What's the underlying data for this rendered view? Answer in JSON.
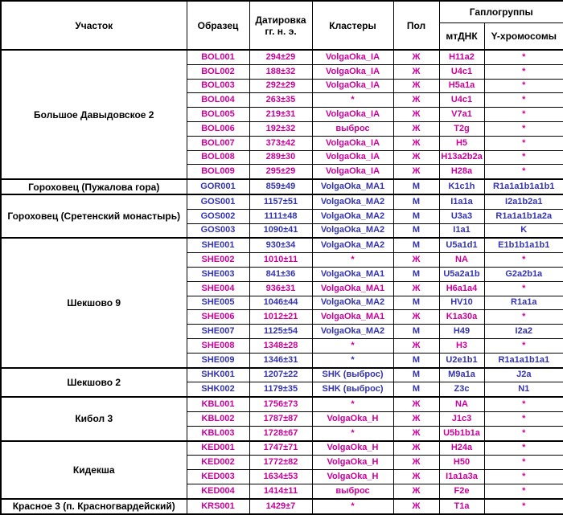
{
  "header": {
    "site": "Участок",
    "sample": "Образец",
    "dating_line1": "Датировка",
    "dating_line2": "гг. н. э.",
    "clusters": "Кластеры",
    "sex": "Пол",
    "haplogroups": "Гаплогруппы",
    "mtdna": "мтДНК",
    "ychr": "Y-хромосомы"
  },
  "colors": {
    "female_text": "#CC0099",
    "male_text": "#3333B2",
    "border": "#000000",
    "background": "#FFFFFF"
  },
  "sex_symbols": {
    "male": "М",
    "female": "Ж"
  },
  "groups": [
    {
      "site": "Большое Давыдовское 2",
      "rows": [
        {
          "sample": "BOL001",
          "dating": "294±29",
          "cluster": "VolgaOka_IA",
          "sex": "Ж",
          "mtdna": "H11a2",
          "y": "*"
        },
        {
          "sample": "BOL002",
          "dating": "188±32",
          "cluster": "VolgaOka_IA",
          "sex": "Ж",
          "mtdna": "U4c1",
          "y": "*"
        },
        {
          "sample": "BOL003",
          "dating": "292±29",
          "cluster": "VolgaOka_IA",
          "sex": "Ж",
          "mtdna": "H5a1a",
          "y": "*"
        },
        {
          "sample": "BOL004",
          "dating": "263±35",
          "cluster": "*",
          "sex": "Ж",
          "mtdna": "U4c1",
          "y": "*"
        },
        {
          "sample": "BOL005",
          "dating": "219±31",
          "cluster": "VolgaOka_IA",
          "sex": "Ж",
          "mtdna": "V7a1",
          "y": "*"
        },
        {
          "sample": "BOL006",
          "dating": "192±32",
          "cluster": "выброс",
          "sex": "Ж",
          "mtdna": "T2g",
          "y": "*"
        },
        {
          "sample": "BOL007",
          "dating": "373±42",
          "cluster": "VolgaOka_IA",
          "sex": "Ж",
          "mtdna": "H5",
          "y": "*"
        },
        {
          "sample": "BOL008",
          "dating": "289±30",
          "cluster": "VolgaOka_IA",
          "sex": "Ж",
          "mtdna": "H13a2b2a",
          "y": "*"
        },
        {
          "sample": "BOL009",
          "dating": "295±29",
          "cluster": "VolgaOka_IA",
          "sex": "Ж",
          "mtdna": "H28a",
          "y": "*"
        }
      ]
    },
    {
      "site": "Гороховец (Пужалова гора)",
      "rows": [
        {
          "sample": "GOR001",
          "dating": "859±49",
          "cluster": "VolgaOka_MA1",
          "sex": "М",
          "mtdna": "K1c1h",
          "y": "R1a1a1b1a1b1"
        }
      ]
    },
    {
      "site": "Гороховец (Сретенский монастырь)",
      "rows": [
        {
          "sample": "GOS001",
          "dating": "1157±51",
          "cluster": "VolgaOka_MA2",
          "sex": "М",
          "mtdna": "I1a1a",
          "y": "I2a1b2a1"
        },
        {
          "sample": "GOS002",
          "dating": "1111±48",
          "cluster": "VolgaOka_MA2",
          "sex": "М",
          "mtdna": "U3a3",
          "y": "R1a1a1b1a2a"
        },
        {
          "sample": "GOS003",
          "dating": "1090±41",
          "cluster": "VolgaOka_MA2",
          "sex": "М",
          "mtdna": "I1a1",
          "y": "K"
        }
      ]
    },
    {
      "site": "Шекшово 9",
      "rows": [
        {
          "sample": "SHE001",
          "dating": "930±34",
          "cluster": "VolgaOka_MA2",
          "sex": "М",
          "mtdna": "U5a1d1",
          "y": "E1b1b1a1b1"
        },
        {
          "sample": "SHE002",
          "dating": "1010±11",
          "cluster": "*",
          "sex": "Ж",
          "mtdna": "NA",
          "y": "*"
        },
        {
          "sample": "SHE003",
          "dating": "841±36",
          "cluster": "VolgaOka_MA1",
          "sex": "М",
          "mtdna": "U5a2a1b",
          "y": "G2a2b1a"
        },
        {
          "sample": "SHE004",
          "dating": "936±31",
          "cluster": "VolgaOka_MA1",
          "sex": "Ж",
          "mtdna": "H6a1a4",
          "y": "*"
        },
        {
          "sample": "SHE005",
          "dating": "1046±44",
          "cluster": "VolgaOka_MA2",
          "sex": "М",
          "mtdna": "HV10",
          "y": "R1a1a"
        },
        {
          "sample": "SHE006",
          "dating": "1012±21",
          "cluster": "VolgaOka_MA1",
          "sex": "Ж",
          "mtdna": "K1a30a",
          "y": "*"
        },
        {
          "sample": "SHE007",
          "dating": "1125±54",
          "cluster": "VolgaOka_MA2",
          "sex": "М",
          "mtdna": "H49",
          "y": "I2a2"
        },
        {
          "sample": "SHE008",
          "dating": "1348±28",
          "cluster": "*",
          "sex": "Ж",
          "mtdna": "H3",
          "y": "*"
        },
        {
          "sample": "SHE009",
          "dating": "1346±31",
          "cluster": "*",
          "sex": "М",
          "mtdna": "U2e1b1",
          "y": "R1a1a1b1a1"
        }
      ]
    },
    {
      "site": "Шекшово 2",
      "rows": [
        {
          "sample": "SHK001",
          "dating": "1207±22",
          "cluster": "SHK (выброс)",
          "sex": "М",
          "mtdna": "M9a1a",
          "y": "J2a"
        },
        {
          "sample": "SHK002",
          "dating": "1179±35",
          "cluster": "SHK (выброс)",
          "sex": "М",
          "mtdna": "Z3c",
          "y": "N1"
        }
      ]
    },
    {
      "site": "Кибол 3",
      "rows": [
        {
          "sample": "KBL001",
          "dating": "1756±73",
          "cluster": "*",
          "sex": "Ж",
          "mtdna": "NA",
          "y": "*"
        },
        {
          "sample": "KBL002",
          "dating": "1787±87",
          "cluster": "VolgaOka_H",
          "sex": "Ж",
          "mtdna": "J1c3",
          "y": "*"
        },
        {
          "sample": "KBL003",
          "dating": "1728±67",
          "cluster": "*",
          "sex": "Ж",
          "mtdna": "U5b1b1a",
          "y": "*"
        }
      ]
    },
    {
      "site": "Кидекша",
      "rows": [
        {
          "sample": "KED001",
          "dating": "1747±71",
          "cluster": "VolgaOka_H",
          "sex": "Ж",
          "mtdna": "H24a",
          "y": "*"
        },
        {
          "sample": "KED002",
          "dating": "1772±82",
          "cluster": "VolgaOka_H",
          "sex": "Ж",
          "mtdna": "H50",
          "y": "*"
        },
        {
          "sample": "KED003",
          "dating": "1634±53",
          "cluster": "VolgaOka_H",
          "sex": "Ж",
          "mtdna": "I1a1a3a",
          "y": "*"
        },
        {
          "sample": "KED004",
          "dating": "1414±11",
          "cluster": "выброс",
          "sex": "Ж",
          "mtdna": "F2e",
          "y": "*"
        }
      ]
    },
    {
      "site": "Красное 3 (п. Красногвардейский)",
      "rows": [
        {
          "sample": "KRS001",
          "dating": "1429±7",
          "cluster": "*",
          "sex": "Ж",
          "mtdna": "T1a",
          "y": "*"
        }
      ]
    }
  ]
}
